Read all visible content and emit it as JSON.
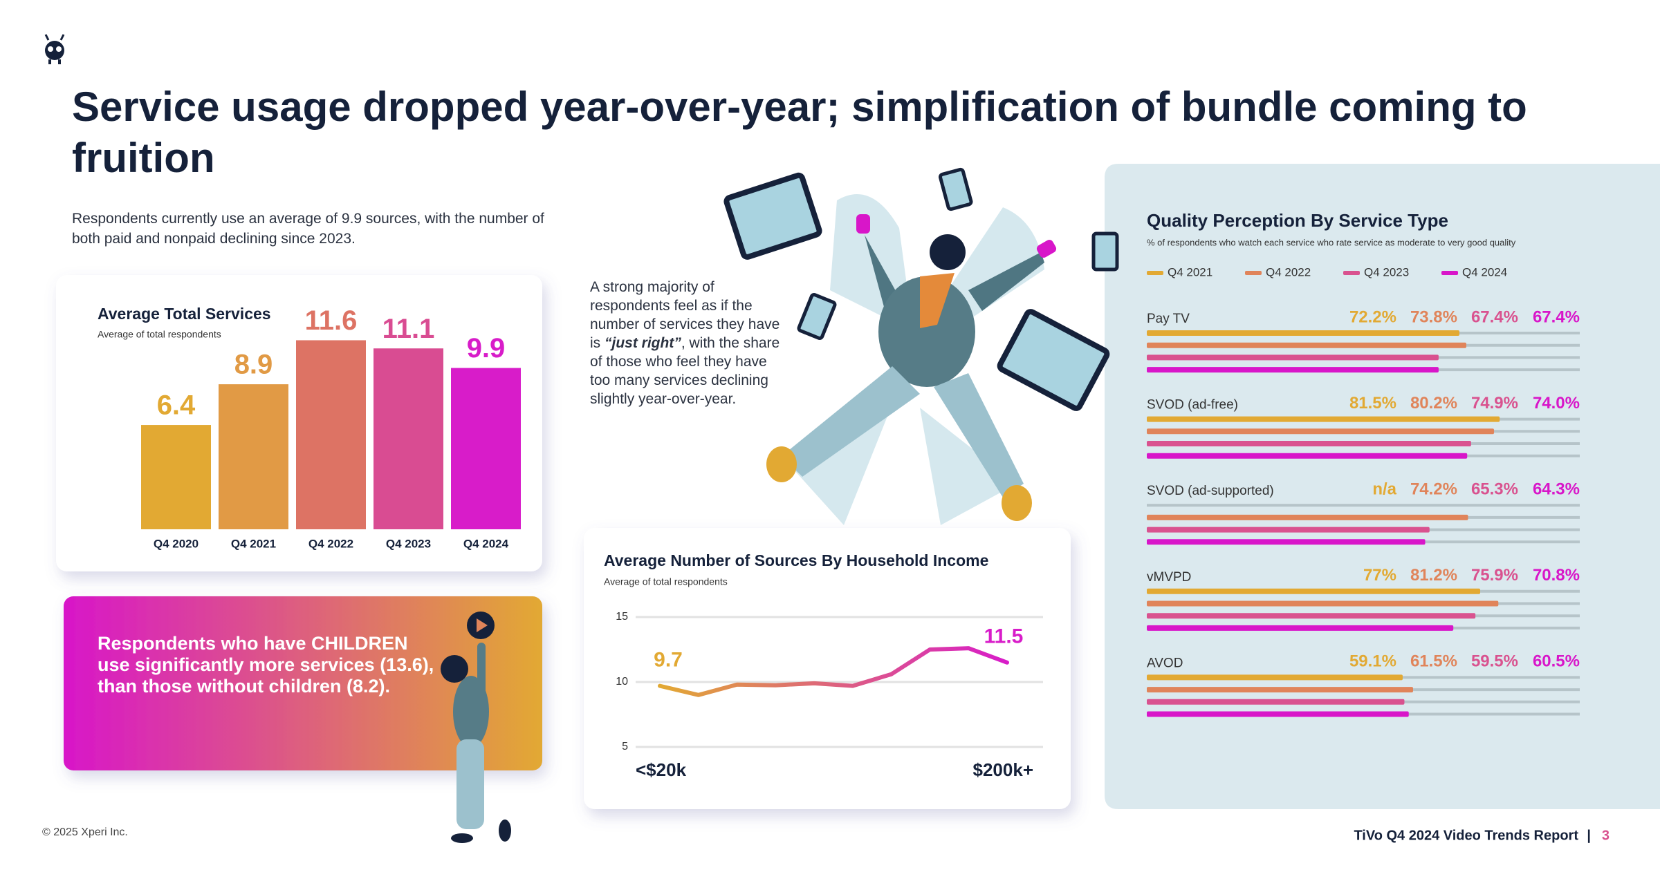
{
  "header": {
    "title": "Service usage dropped year-over-year; simplification of bundle coming to fruition"
  },
  "intro": "Respondents currently use an average of 9.9 sources, with the number of both paid and nonpaid declining since 2023.",
  "insight": {
    "before": "A strong majority of respondents feel as if the number of services they have is ",
    "emphasis": "“just right”",
    "after": ", with the share of those who feel they have too many services declining slightly year-over-year."
  },
  "callout": "Respondents who have CHILDREN use significantly more services (13.6), than those without children (8.2).",
  "footer": {
    "copyright": "© 2025 Xperi Inc.",
    "report": "TiVo Q4 2024 Video Trends Report",
    "separator": "|",
    "page": "3"
  },
  "chart_data": [
    {
      "type": "bar",
      "title": "Average Total Services",
      "subtitle": "Average of total respondents",
      "categories": [
        "Q4 2020",
        "Q4 2021",
        "Q4 2022",
        "Q4 2023",
        "Q4 2024"
      ],
      "values": [
        6.4,
        8.9,
        11.6,
        11.1,
        9.9
      ],
      "colors": [
        "#e2a933",
        "#e19a45",
        "#dd7364",
        "#d94c92",
        "#d81cc9"
      ],
      "ylim": [
        0,
        12
      ]
    },
    {
      "type": "line",
      "title": "Average Number of Sources By Household Income",
      "subtitle": "Average of total respondents",
      "categories": [
        "<$20k",
        null,
        null,
        null,
        null,
        null,
        null,
        null,
        null,
        "$200k+"
      ],
      "values": [
        9.7,
        9.0,
        9.8,
        9.75,
        9.9,
        9.7,
        10.6,
        12.5,
        12.6,
        11.5
      ],
      "value_labels": [
        "9.7",
        null,
        null,
        null,
        null,
        null,
        null,
        null,
        null,
        "11.5"
      ],
      "colors": [
        "#e2a933",
        "#d81cc9"
      ],
      "ylim": [
        5,
        15
      ],
      "yticks": [
        5,
        10,
        15
      ],
      "grid": true
    },
    {
      "type": "hbar",
      "title": "Quality Perception By Service Type",
      "subtitle": "% of respondents who watch each service who rate service as moderate to very good quality",
      "categories": [
        "Pay TV",
        "SVOD (ad-free)",
        "SVOD (ad-supported)",
        "vMVPD",
        "AVOD"
      ],
      "xlim": [
        0,
        100
      ],
      "series": [
        {
          "name": "Q4 2021",
          "color": "#e2a933",
          "values": [
            72.2,
            81.5,
            null,
            77,
            59.1
          ],
          "value_labels": [
            "72.2%",
            "81.5%",
            "n/a",
            "77%",
            "59.1%"
          ]
        },
        {
          "name": "Q4 2022",
          "color": "#e0845a",
          "values": [
            73.8,
            80.2,
            74.2,
            81.2,
            61.5
          ],
          "value_labels": [
            "73.8%",
            "80.2%",
            "74.2%",
            "81.2%",
            "61.5%"
          ]
        },
        {
          "name": "Q4 2023",
          "color": "#d9528f",
          "values": [
            67.4,
            74.9,
            65.3,
            75.9,
            59.5
          ],
          "value_labels": [
            "67.4%",
            "74.9%",
            "65.3%",
            "75.9%",
            "59.5%"
          ]
        },
        {
          "name": "Q4 2024",
          "color": "#d816c9",
          "values": [
            67.4,
            74.0,
            64.3,
            70.8,
            60.5
          ],
          "value_labels": [
            "67.4%",
            "74.0%",
            "64.3%",
            "70.8%",
            "60.5%"
          ]
        }
      ]
    }
  ]
}
